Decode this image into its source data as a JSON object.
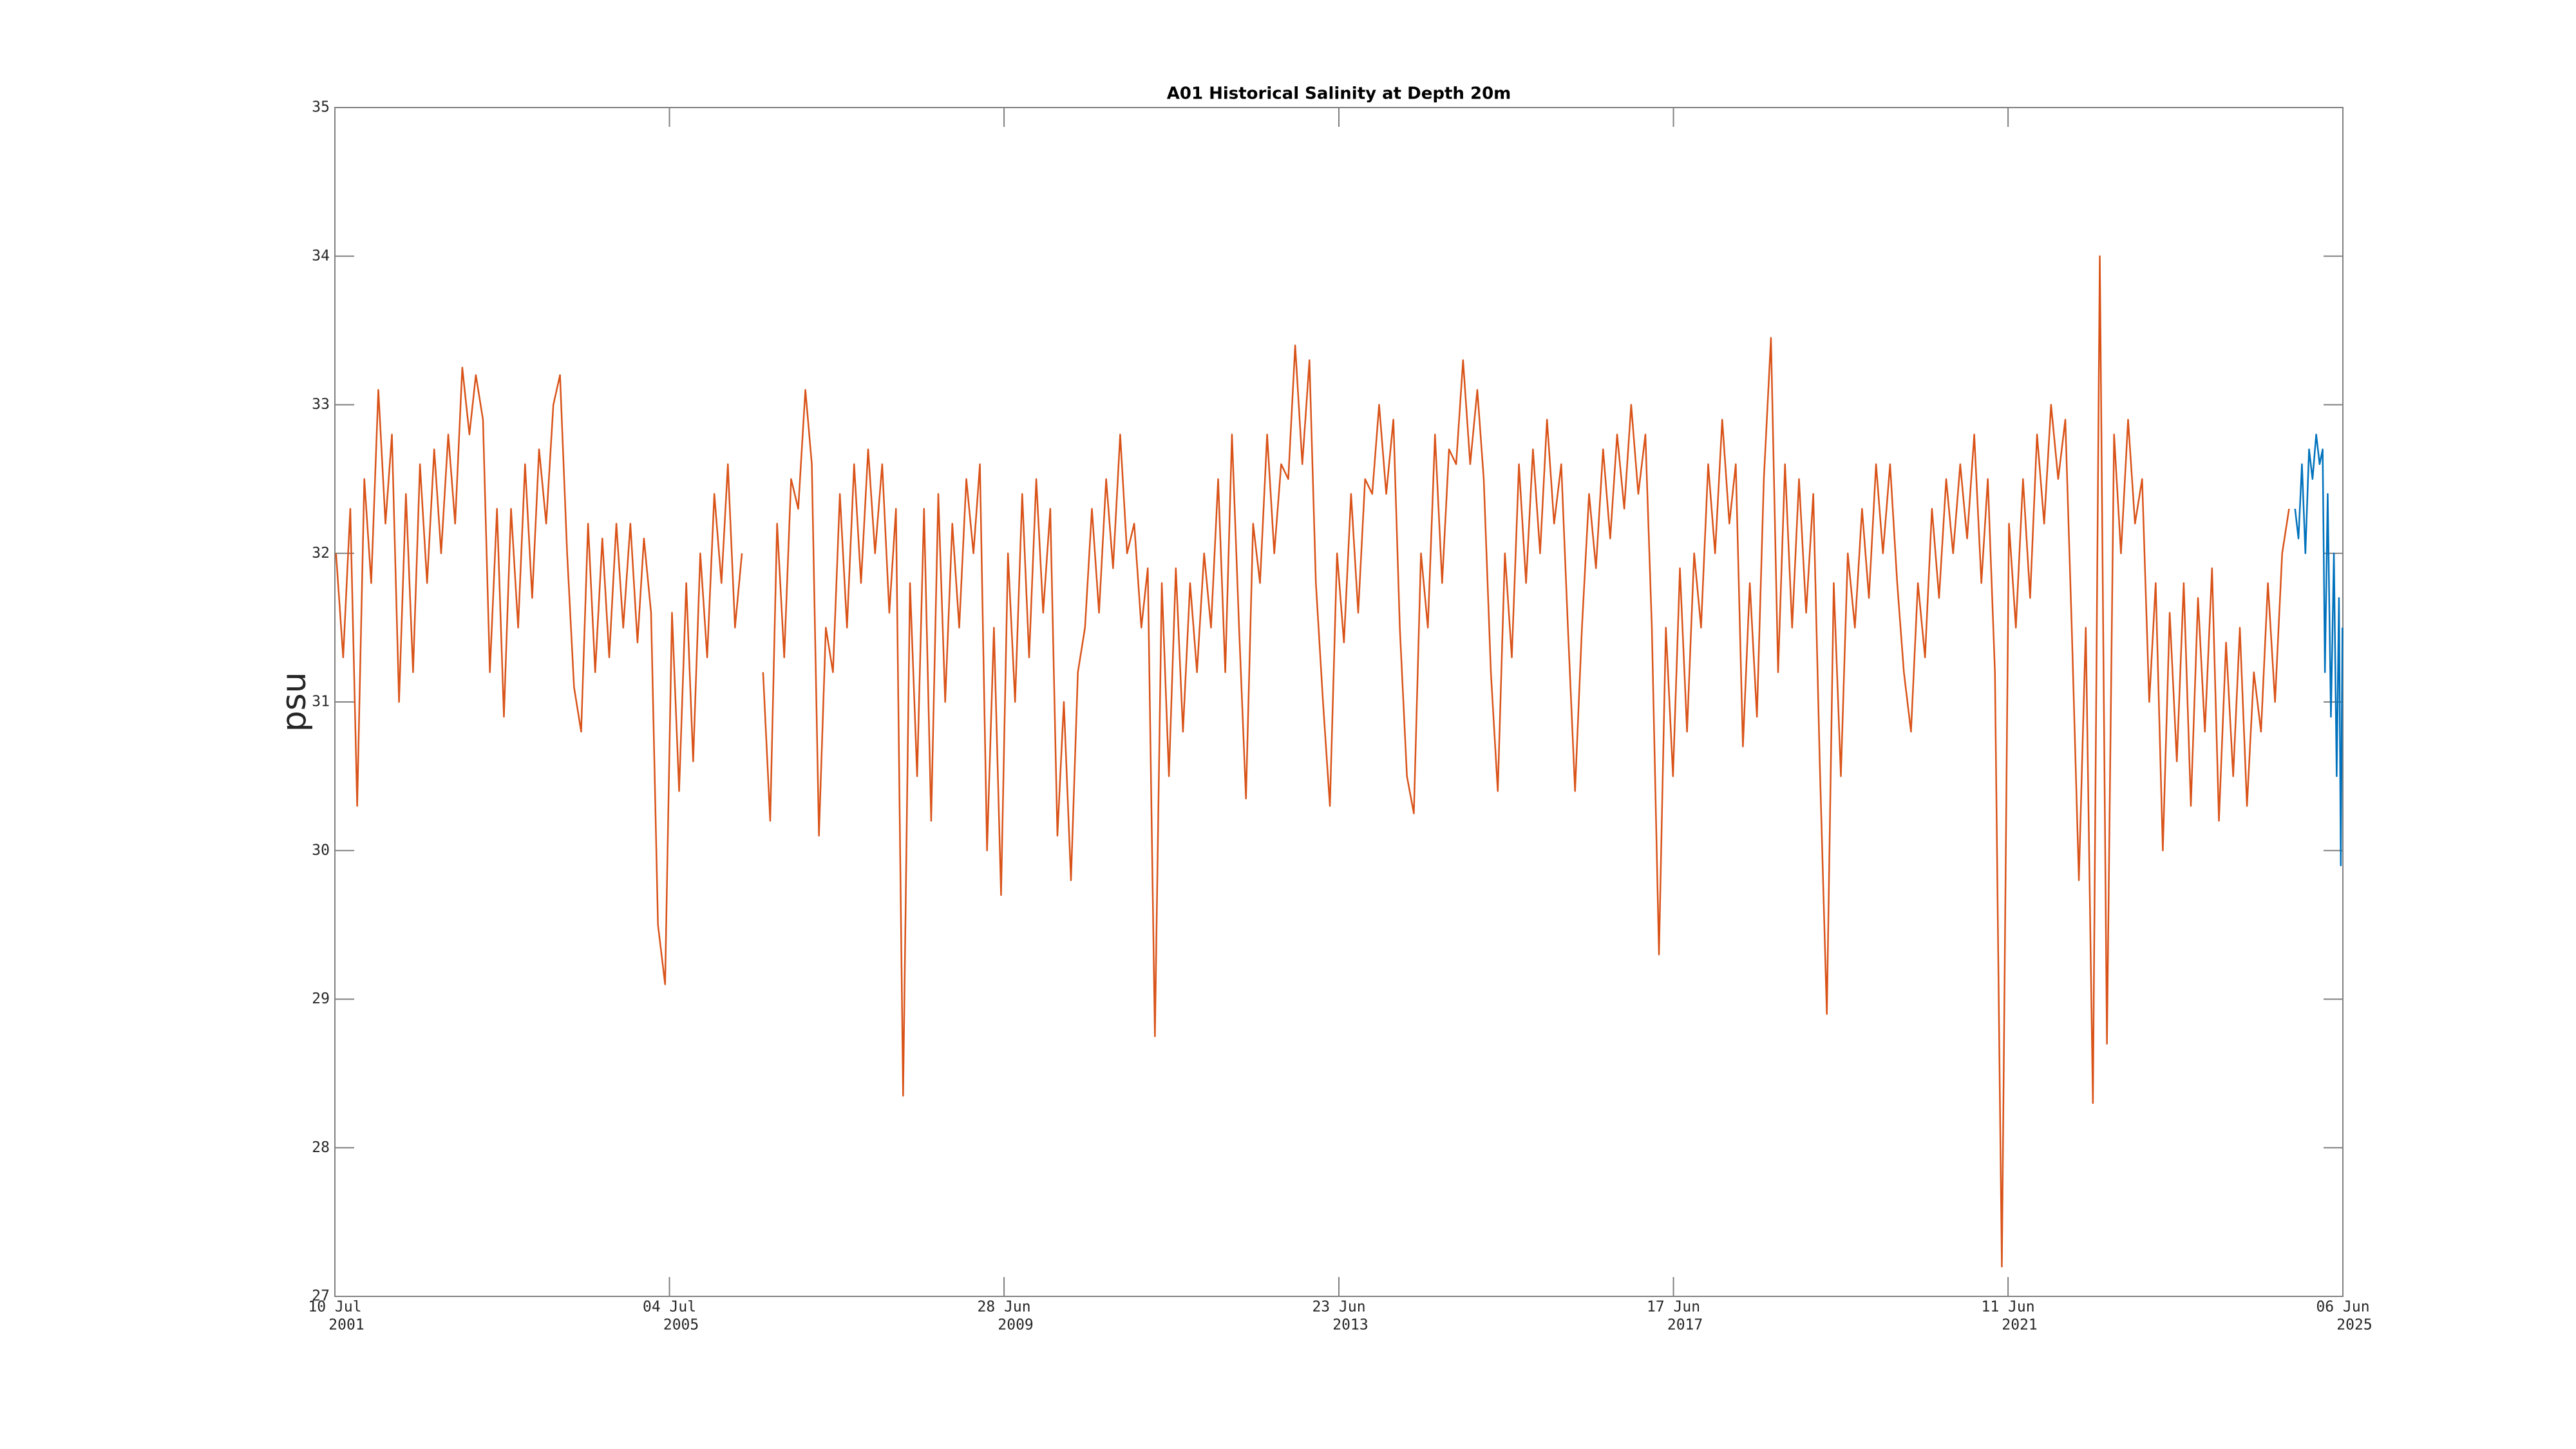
{
  "chart_data": {
    "type": "line",
    "title": "A01 Historical Salinity at Depth 20m",
    "ylabel": "psu",
    "xlim": [
      "2001-07-10",
      "2025-06-06"
    ],
    "xticks": [
      {
        "value": "2001-07-10",
        "label": [
          "10 Jul",
          "2001"
        ]
      },
      {
        "value": "2005-07-04",
        "label": [
          "04 Jul",
          "2005"
        ]
      },
      {
        "value": "2009-06-28",
        "label": [
          "28 Jun",
          "2009"
        ]
      },
      {
        "value": "2013-06-23",
        "label": [
          "23 Jun",
          "2013"
        ]
      },
      {
        "value": "2017-06-17",
        "label": [
          "17 Jun",
          "2017"
        ]
      },
      {
        "value": "2021-06-11",
        "label": [
          "11 Jun",
          "2021"
        ]
      },
      {
        "value": "2025-06-06",
        "label": [
          "06 Jun",
          "2025"
        ]
      }
    ],
    "ylim": [
      27,
      35
    ],
    "yticks": [
      27,
      28,
      29,
      30,
      31,
      32,
      33,
      34,
      35
    ],
    "grid": false,
    "series": [
      {
        "color": "#d95319",
        "x": [
          "2001-07-15",
          "2001-08-15",
          "2001-09-15",
          "2001-10-15",
          "2001-11-15",
          "2001-12-15",
          "2002-01-15",
          "2002-02-15",
          "2002-03-15",
          "2002-04-15",
          "2002-05-15",
          "2002-06-15",
          "2002-07-15",
          "2002-08-15",
          "2002-09-15",
          "2002-10-15",
          "2002-11-15",
          "2002-12-15",
          "2003-01-15",
          "2003-02-15",
          "2003-03-15",
          "2003-04-15",
          "2003-05-15",
          "2003-06-15",
          "2003-07-15",
          "2003-08-15",
          "2003-09-15",
          "2003-10-15",
          "2003-11-15",
          "2003-12-15",
          "2004-01-15",
          "2004-02-15",
          "2004-03-15",
          "2004-04-15",
          "2004-05-15",
          "2004-06-15",
          "2004-07-15",
          "2004-08-15",
          "2004-09-15",
          "2004-10-15",
          "2004-11-15",
          "2004-12-15",
          "2005-01-15",
          "2005-02-15",
          "2005-03-15",
          "2005-04-15",
          "2005-05-15",
          "2005-06-15",
          "2005-07-15",
          "2005-08-15",
          "2005-09-15",
          "2005-10-15",
          "2005-11-15",
          "2005-12-15",
          "2006-01-15",
          "2006-02-15",
          "2006-03-15",
          "2006-04-15",
          "2006-05-15",
          "2006-06-15",
          "2006-07-15",
          "2006-08-15",
          "2006-09-15",
          "2006-10-15",
          "2006-11-15",
          "2006-12-15",
          "2007-01-15",
          "2007-02-15",
          "2007-03-15",
          "2007-04-15",
          "2007-05-15",
          "2007-06-15",
          "2007-07-15",
          "2007-08-15",
          "2007-09-15",
          "2007-10-15",
          "2007-11-15",
          "2007-12-15",
          "2008-01-15",
          "2008-02-15",
          "2008-03-15",
          "2008-04-15",
          "2008-05-15",
          "2008-06-15",
          "2008-07-15",
          "2008-08-15",
          "2008-09-15",
          "2008-10-15",
          "2008-11-15",
          "2008-12-15",
          "2009-01-15",
          "2009-02-15",
          "2009-03-15",
          "2009-04-15",
          "2009-05-15",
          "2009-06-15",
          "2009-07-15",
          "2009-08-15",
          "2009-09-15",
          "2009-10-15",
          "2009-11-15",
          "2009-12-15",
          "2010-01-15",
          "2010-02-15",
          "2010-03-15",
          "2010-04-15",
          "2010-05-15",
          "2010-06-15",
          "2010-07-15",
          "2010-08-15",
          "2010-09-15",
          "2010-10-15",
          "2010-11-15",
          "2010-12-15",
          "2011-01-15",
          "2011-02-15",
          "2011-03-15",
          "2011-04-15",
          "2011-05-15",
          "2011-06-15",
          "2011-07-15",
          "2011-08-15",
          "2011-09-15",
          "2011-10-15",
          "2011-11-15",
          "2011-12-15",
          "2012-01-15",
          "2012-02-15",
          "2012-03-15",
          "2012-04-15",
          "2012-05-15",
          "2012-06-15",
          "2012-07-15",
          "2012-08-15",
          "2012-09-15",
          "2012-10-15",
          "2012-11-15",
          "2012-12-15",
          "2013-01-15",
          "2013-02-15",
          "2013-03-15",
          "2013-04-15",
          "2013-05-15",
          "2013-06-15",
          "2013-07-15",
          "2013-08-15",
          "2013-09-15",
          "2013-10-15",
          "2013-11-15",
          "2013-12-15",
          "2014-01-15",
          "2014-02-15",
          "2014-03-15",
          "2014-04-15",
          "2014-05-15",
          "2014-06-15",
          "2014-07-15",
          "2014-08-15",
          "2014-09-15",
          "2014-10-15",
          "2014-11-15",
          "2014-12-15",
          "2015-01-15",
          "2015-02-15",
          "2015-03-15",
          "2015-04-15",
          "2015-05-15",
          "2015-06-15",
          "2015-07-15",
          "2015-08-15",
          "2015-09-15",
          "2015-10-15",
          "2015-11-15",
          "2015-12-15",
          "2016-01-15",
          "2016-02-15",
          "2016-03-15",
          "2016-04-15",
          "2016-05-15",
          "2016-06-15",
          "2016-07-15",
          "2016-08-15",
          "2016-09-15",
          "2016-10-15",
          "2016-11-15",
          "2016-12-15",
          "2017-01-15",
          "2017-02-15",
          "2017-03-15",
          "2017-04-15",
          "2017-05-15",
          "2017-06-15",
          "2017-07-15",
          "2017-08-15",
          "2017-09-15",
          "2017-10-15",
          "2017-11-15",
          "2017-12-15",
          "2018-01-15",
          "2018-02-15",
          "2018-03-15",
          "2018-04-15",
          "2018-05-15",
          "2018-06-15",
          "2018-07-15",
          "2018-08-15",
          "2018-09-15",
          "2018-10-15",
          "2018-11-15",
          "2018-12-15",
          "2019-01-15",
          "2019-02-15",
          "2019-03-15",
          "2019-04-15",
          "2019-05-15",
          "2019-06-15",
          "2019-07-15",
          "2019-08-15",
          "2019-09-15",
          "2019-10-15",
          "2019-11-15",
          "2019-12-15",
          "2020-01-15",
          "2020-02-15",
          "2020-03-15",
          "2020-04-15",
          "2020-05-15",
          "2020-06-15",
          "2020-07-15",
          "2020-08-15",
          "2020-09-15",
          "2020-10-15",
          "2020-11-15",
          "2020-12-15",
          "2021-01-15",
          "2021-02-15",
          "2021-03-15",
          "2021-04-15",
          "2021-05-15",
          "2021-06-15",
          "2021-07-15",
          "2021-08-15",
          "2021-09-15",
          "2021-10-15",
          "2021-11-15",
          "2021-12-15",
          "2022-01-15",
          "2022-02-15",
          "2022-03-15",
          "2022-04-15",
          "2022-05-15",
          "2022-06-15",
          "2022-07-15",
          "2022-08-15",
          "2022-09-15",
          "2022-10-15",
          "2022-11-15",
          "2022-12-15",
          "2023-01-15",
          "2023-02-15",
          "2023-03-15",
          "2023-04-15",
          "2023-05-15",
          "2023-06-15",
          "2023-07-15",
          "2023-08-15",
          "2023-09-15",
          "2023-10-15",
          "2023-11-15",
          "2023-12-15",
          "2024-01-15",
          "2024-02-15",
          "2024-03-15",
          "2024-04-15",
          "2024-05-15",
          "2024-06-15",
          "2024-07-15",
          "2024-08-15",
          "2024-09-15",
          "2024-10-15"
        ],
        "values": [
          32.0,
          31.3,
          32.3,
          30.3,
          32.5,
          31.8,
          33.1,
          32.2,
          32.8,
          31.0,
          32.4,
          31.2,
          32.6,
          31.8,
          32.7,
          32.0,
          32.8,
          32.2,
          33.25,
          32.8,
          33.2,
          32.9,
          31.2,
          32.3,
          30.9,
          32.3,
          31.5,
          32.6,
          31.7,
          32.7,
          32.2,
          33.0,
          33.2,
          32.0,
          31.1,
          30.8,
          32.2,
          31.2,
          32.1,
          31.3,
          32.2,
          31.5,
          32.2,
          31.4,
          32.1,
          31.6,
          29.5,
          29.1,
          31.6,
          30.4,
          31.8,
          30.6,
          32.0,
          31.3,
          32.4,
          31.8,
          32.6,
          31.5,
          32.0,
          null,
          null,
          31.2,
          30.2,
          32.2,
          31.3,
          32.5,
          32.3,
          33.1,
          32.6,
          30.1,
          31.5,
          31.2,
          32.4,
          31.5,
          32.6,
          31.8,
          32.7,
          32.0,
          32.6,
          31.6,
          32.3,
          28.35,
          31.8,
          30.5,
          32.3,
          30.2,
          32.4,
          31.0,
          32.2,
          31.5,
          32.5,
          32.0,
          32.6,
          30.0,
          31.5,
          29.7,
          32.0,
          31.0,
          32.4,
          31.3,
          32.5,
          31.6,
          32.3,
          30.1,
          31.0,
          29.8,
          31.2,
          31.5,
          32.3,
          31.6,
          32.5,
          31.9,
          32.8,
          32.0,
          32.2,
          31.5,
          31.9,
          28.75,
          31.8,
          30.5,
          31.9,
          30.8,
          31.8,
          31.2,
          32.0,
          31.5,
          32.5,
          31.2,
          32.8,
          31.5,
          30.35,
          32.2,
          31.8,
          32.8,
          32.0,
          32.6,
          32.5,
          33.4,
          32.6,
          33.3,
          31.8,
          31.0,
          30.3,
          32.0,
          31.4,
          32.4,
          31.6,
          32.5,
          32.4,
          33.0,
          32.4,
          32.9,
          31.5,
          30.5,
          30.25,
          32.0,
          31.5,
          32.8,
          31.8,
          32.7,
          32.6,
          33.3,
          32.6,
          33.1,
          32.5,
          31.2,
          30.4,
          32.0,
          31.3,
          32.6,
          31.8,
          32.7,
          32.0,
          32.9,
          32.2,
          32.6,
          31.5,
          30.4,
          31.5,
          32.4,
          31.9,
          32.7,
          32.1,
          32.8,
          32.3,
          33.0,
          32.4,
          32.8,
          31.5,
          29.3,
          31.5,
          30.5,
          31.9,
          30.8,
          32.0,
          31.5,
          32.6,
          32.0,
          32.9,
          32.2,
          32.6,
          30.7,
          31.8,
          30.9,
          32.5,
          33.45,
          31.2,
          32.6,
          31.5,
          32.5,
          31.6,
          32.4,
          30.6,
          28.9,
          31.8,
          30.5,
          32.0,
          31.5,
          32.3,
          31.7,
          32.6,
          32.0,
          32.6,
          31.8,
          31.2,
          30.8,
          31.8,
          31.3,
          32.3,
          31.7,
          32.5,
          32.0,
          32.6,
          32.1,
          32.8,
          31.8,
          32.5,
          31.2,
          27.2,
          32.2,
          31.5,
          32.5,
          31.7,
          32.8,
          32.2,
          33.0,
          32.5,
          32.9,
          31.5,
          29.8,
          31.5,
          28.3,
          34.0,
          28.7,
          32.8,
          32.0,
          32.9,
          32.2,
          32.5,
          31.0,
          31.8,
          30.0,
          31.6,
          30.6,
          31.8,
          30.3,
          31.7,
          30.8,
          31.9,
          30.2,
          31.4,
          30.5,
          31.5,
          30.3,
          31.2,
          30.8,
          31.8,
          31.0,
          32.0,
          32.3
        ]
      },
      {
        "color": "#0072bd",
        "x": [
          "2024-11-10",
          "2024-11-25",
          "2024-12-10",
          "2024-12-25",
          "2025-01-10",
          "2025-01-25",
          "2025-02-10",
          "2025-02-25",
          "2025-03-10",
          "2025-03-20",
          "2025-04-01",
          "2025-04-15",
          "2025-04-28",
          "2025-05-10",
          "2025-05-20",
          "2025-05-28",
          "2025-06-04"
        ],
        "values": [
          32.3,
          32.1,
          32.6,
          32.0,
          32.7,
          32.5,
          32.8,
          32.6,
          32.7,
          31.2,
          32.4,
          30.9,
          32.0,
          30.5,
          31.7,
          29.9,
          31.5
        ]
      }
    ]
  }
}
